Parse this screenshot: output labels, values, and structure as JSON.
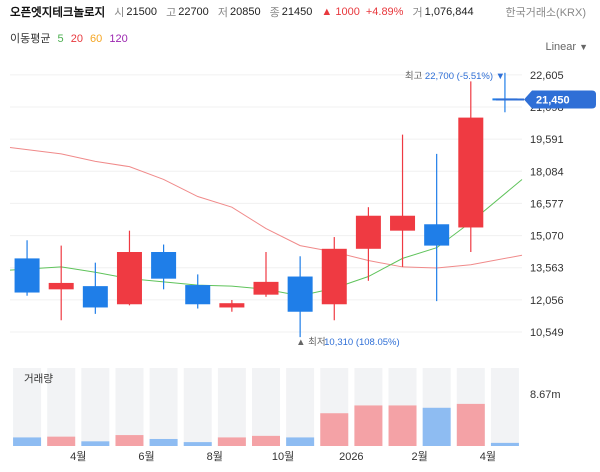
{
  "header": {
    "name": "오픈엣지테크놀로지",
    "open_label": "시",
    "open": "21500",
    "high_label": "고",
    "high": "22700",
    "low_label": "저",
    "low": "20850",
    "close_label": "종",
    "close": "21450",
    "change": "▲ 1000",
    "change_pct": "+4.89%",
    "volume_label": "거",
    "volume": "1,076,844",
    "exchange": "한국거래소(KRX)"
  },
  "ma_legend": {
    "label": "이동평균",
    "items": [
      {
        "period": "5",
        "color": "#4caf50"
      },
      {
        "period": "20",
        "color": "#e8383d"
      },
      {
        "period": "60",
        "color": "#f5a623"
      },
      {
        "period": "120",
        "color": "#9c27b0"
      }
    ]
  },
  "scale_label": "Linear",
  "chart_data": {
    "type": "candlestick",
    "interval": "2 weeks",
    "colors": {
      "up": "#ef3a42",
      "down": "#1f7ee8",
      "ma5": "#5fc35b",
      "ma20": "#f08a8a",
      "vol_up": "#f4a2a6",
      "vol_down": "#8ebcf2"
    },
    "candles": [
      {
        "o": 14000,
        "h": 14850,
        "l": 12250,
        "c": 12400
      },
      {
        "o": 12550,
        "h": 14600,
        "l": 11100,
        "c": 12850
      },
      {
        "o": 12700,
        "h": 13800,
        "l": 11400,
        "c": 11700
      },
      {
        "o": 11850,
        "h": 15300,
        "l": 11800,
        "c": 14300
      },
      {
        "o": 14300,
        "h": 14650,
        "l": 12550,
        "c": 13050
      },
      {
        "o": 12750,
        "h": 13250,
        "l": 11650,
        "c": 11850
      },
      {
        "o": 11700,
        "h": 12050,
        "l": 11500,
        "c": 11900
      },
      {
        "o": 12300,
        "h": 14300,
        "l": 12200,
        "c": 12900
      },
      {
        "o": 13150,
        "h": 14100,
        "l": 10310,
        "c": 11500
      },
      {
        "o": 11850,
        "h": 15000,
        "l": 11100,
        "c": 14450
      },
      {
        "o": 14450,
        "h": 16400,
        "l": 12950,
        "c": 16000
      },
      {
        "o": 15300,
        "h": 19800,
        "l": 13600,
        "c": 16000
      },
      {
        "o": 15600,
        "h": 18900,
        "l": 12000,
        "c": 14600
      },
      {
        "o": 15450,
        "h": 22300,
        "l": 14300,
        "c": 20600
      },
      {
        "o": 21500,
        "h": 22700,
        "l": 20850,
        "c": 21450
      }
    ],
    "ma5": [
      13450,
      13600,
      13350,
      13050,
      12900,
      12750,
      12700,
      12550,
      12250,
      12600,
      13150,
      14000,
      14500,
      15700,
      17700
    ],
    "ma20": [
      19200,
      18900,
      18550,
      18300,
      17700,
      16900,
      16400,
      15400,
      14600,
      14300,
      13900,
      13600,
      13550,
      13700,
      14150
    ],
    "volume": [
      0.11,
      0.12,
      0.06,
      0.14,
      0.09,
      0.05,
      0.11,
      0.13,
      0.11,
      0.42,
      0.52,
      0.52,
      0.49,
      0.54,
      0.04
    ],
    "y_ticks": [
      "22,605",
      "21,098",
      "19,591",
      "18,084",
      "16,577",
      "15,070",
      "13,563",
      "12,056",
      "10,549"
    ],
    "y_range": [
      9800,
      23300
    ],
    "x_labels": [
      {
        "index": 1.5,
        "label": "4월"
      },
      {
        "index": 3.5,
        "label": "6월"
      },
      {
        "index": 5.5,
        "label": "8월"
      },
      {
        "index": 7.5,
        "label": "10월"
      },
      {
        "index": 9.5,
        "label": "2026"
      },
      {
        "index": 11.5,
        "label": "2월"
      },
      {
        "index": 13.5,
        "label": "4월"
      }
    ],
    "volume_title": "거래량",
    "volume_tick": "8.67m",
    "current_price": {
      "value": 21450,
      "label": "21,450"
    },
    "annotations": {
      "high": {
        "index": 14,
        "value": 22700,
        "prefix": "최고",
        "text": "22,700 (-5.51%) ▼"
      },
      "low": {
        "index": 8,
        "value": 10310,
        "prefix": "▲ 최저",
        "text": "10,310 (108.05%)"
      }
    }
  }
}
